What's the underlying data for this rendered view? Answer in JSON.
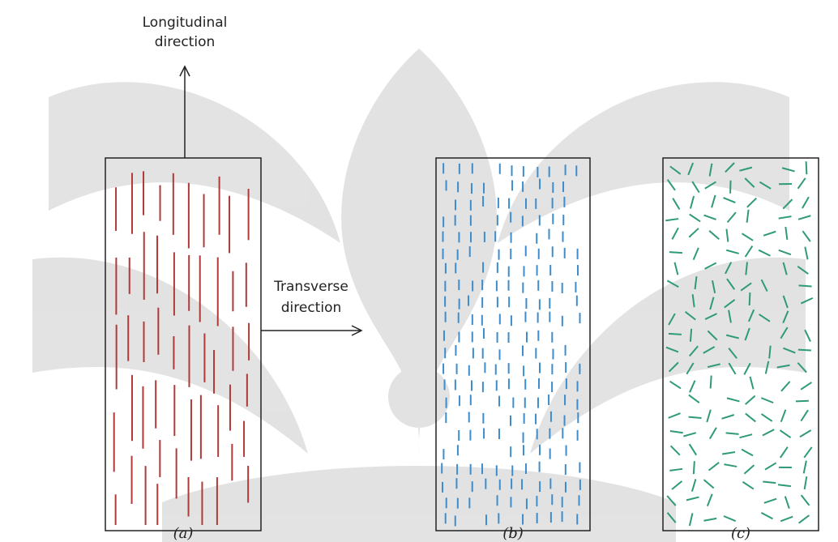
{
  "longitudinal_label": [
    "Longitudinal",
    "direction"
  ],
  "transverse_label": [
    "Transverse",
    "direction"
  ],
  "panels": [
    {
      "label": "(a)"
    },
    {
      "label": "(b)"
    },
    {
      "label": "(c)"
    }
  ]
}
